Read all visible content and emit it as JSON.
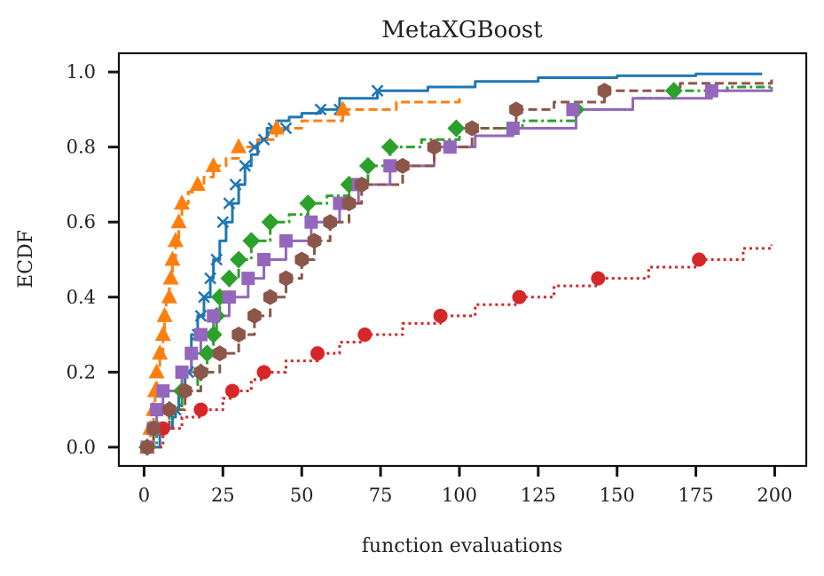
{
  "chart_data": {
    "type": "line",
    "title": "MetaXGBoost",
    "xlabel": "function evaluations",
    "ylabel": "ECDF",
    "xlim": [
      -8,
      210
    ],
    "ylim": [
      -0.05,
      1.05
    ],
    "xticks": [
      0,
      25,
      50,
      75,
      100,
      125,
      150,
      175,
      200
    ],
    "yticks": [
      0.0,
      0.2,
      0.4,
      0.6,
      0.8,
      1.0
    ],
    "xtick_labels": [
      "0",
      "25",
      "50",
      "75",
      "100",
      "125",
      "150",
      "175",
      "200"
    ],
    "ytick_labels": [
      "0.0",
      "0.2",
      "0.4",
      "0.6",
      "0.8",
      "1.0"
    ],
    "grid": false,
    "series": [
      {
        "color": "#1f77b4",
        "dash": "solid",
        "marker": "x",
        "points": [
          [
            1,
            0
          ],
          [
            5,
            0.05
          ],
          [
            9,
            0.08
          ],
          [
            10,
            0.1
          ],
          [
            11,
            0.15
          ],
          [
            13,
            0.2
          ],
          [
            15,
            0.3
          ],
          [
            17,
            0.35
          ],
          [
            19,
            0.4
          ],
          [
            21,
            0.45
          ],
          [
            22,
            0.5
          ],
          [
            24,
            0.55
          ],
          [
            26,
            0.6
          ],
          [
            28,
            0.65
          ],
          [
            30,
            0.7
          ],
          [
            32,
            0.75
          ],
          [
            34,
            0.78
          ],
          [
            36,
            0.82
          ],
          [
            39,
            0.85
          ],
          [
            42,
            0.87
          ],
          [
            46,
            0.88
          ],
          [
            50,
            0.89
          ],
          [
            56,
            0.9
          ],
          [
            62,
            0.93
          ],
          [
            74,
            0.95
          ],
          [
            90,
            0.96
          ],
          [
            105,
            0.975
          ],
          [
            125,
            0.985
          ],
          [
            150,
            0.99
          ],
          [
            175,
            0.995
          ],
          [
            196,
            0.995
          ]
        ],
        "markers": [
          [
            1,
            0
          ],
          [
            5,
            0.05
          ],
          [
            10,
            0.1
          ],
          [
            14,
            0.2
          ],
          [
            17,
            0.3
          ],
          [
            18,
            0.35
          ],
          [
            19,
            0.4
          ],
          [
            21,
            0.45
          ],
          [
            23,
            0.5
          ],
          [
            25,
            0.6
          ],
          [
            27,
            0.65
          ],
          [
            29,
            0.7
          ],
          [
            32,
            0.75
          ],
          [
            35,
            0.8
          ],
          [
            38,
            0.82
          ],
          [
            41,
            0.85
          ],
          [
            45,
            0.85
          ],
          [
            56,
            0.9
          ],
          [
            62,
            0.9
          ],
          [
            74,
            0.95
          ]
        ]
      },
      {
        "color": "#ff7f0e",
        "dash": "dashed",
        "marker": "^",
        "points": [
          [
            1,
            0
          ],
          [
            2,
            0.05
          ],
          [
            3,
            0.1
          ],
          [
            3.5,
            0.15
          ],
          [
            4,
            0.2
          ],
          [
            5,
            0.25
          ],
          [
            6,
            0.3
          ],
          [
            6.5,
            0.35
          ],
          [
            7,
            0.4
          ],
          [
            8,
            0.45
          ],
          [
            9,
            0.5
          ],
          [
            10,
            0.55
          ],
          [
            11,
            0.6
          ],
          [
            12,
            0.65
          ],
          [
            14,
            0.68
          ],
          [
            16,
            0.7
          ],
          [
            19,
            0.72
          ],
          [
            22,
            0.75
          ],
          [
            26,
            0.77
          ],
          [
            30,
            0.8
          ],
          [
            36,
            0.82
          ],
          [
            42,
            0.85
          ],
          [
            50,
            0.87
          ],
          [
            63,
            0.9
          ],
          [
            80,
            0.92
          ],
          [
            100,
            0.93
          ]
        ],
        "markers": [
          [
            1,
            0
          ],
          [
            2,
            0.05
          ],
          [
            3,
            0.1
          ],
          [
            3.5,
            0.15
          ],
          [
            4,
            0.2
          ],
          [
            5,
            0.25
          ],
          [
            6,
            0.3
          ],
          [
            6.5,
            0.35
          ],
          [
            8,
            0.4
          ],
          [
            8.5,
            0.45
          ],
          [
            9,
            0.5
          ],
          [
            10,
            0.55
          ],
          [
            11,
            0.6
          ],
          [
            12,
            0.65
          ],
          [
            17,
            0.7
          ],
          [
            22,
            0.75
          ],
          [
            30,
            0.8
          ],
          [
            42,
            0.85
          ],
          [
            63,
            0.9
          ]
        ]
      },
      {
        "color": "#2ca02c",
        "dash": "dashdot",
        "marker": "D",
        "points": [
          [
            1,
            0
          ],
          [
            4,
            0.05
          ],
          [
            8,
            0.1
          ],
          [
            12,
            0.15
          ],
          [
            17,
            0.2
          ],
          [
            20,
            0.25
          ],
          [
            22,
            0.3
          ],
          [
            23,
            0.35
          ],
          [
            24,
            0.4
          ],
          [
            27,
            0.45
          ],
          [
            30,
            0.5
          ],
          [
            34,
            0.55
          ],
          [
            40,
            0.6
          ],
          [
            46,
            0.62
          ],
          [
            52,
            0.65
          ],
          [
            58,
            0.67
          ],
          [
            65,
            0.7
          ],
          [
            71,
            0.75
          ],
          [
            78,
            0.8
          ],
          [
            88,
            0.82
          ],
          [
            100,
            0.85
          ],
          [
            120,
            0.87
          ],
          [
            137,
            0.9
          ],
          [
            155,
            0.93
          ],
          [
            168,
            0.95
          ],
          [
            185,
            0.96
          ],
          [
            199,
            0.96
          ]
        ],
        "markers": [
          [
            1,
            0
          ],
          [
            4,
            0.05
          ],
          [
            8,
            0.1
          ],
          [
            12,
            0.15
          ],
          [
            18,
            0.2
          ],
          [
            20,
            0.25
          ],
          [
            22,
            0.3
          ],
          [
            23,
            0.35
          ],
          [
            24,
            0.4
          ],
          [
            27,
            0.45
          ],
          [
            30,
            0.5
          ],
          [
            34,
            0.55
          ],
          [
            40,
            0.6
          ],
          [
            52,
            0.65
          ],
          [
            65,
            0.7
          ],
          [
            71,
            0.75
          ],
          [
            78,
            0.8
          ],
          [
            99,
            0.85
          ],
          [
            137,
            0.9
          ],
          [
            168,
            0.95
          ]
        ]
      },
      {
        "color": "#d62728",
        "dash": "dotted",
        "marker": "o",
        "points": [
          [
            1,
            0
          ],
          [
            6,
            0.05
          ],
          [
            12,
            0.08
          ],
          [
            18,
            0.1
          ],
          [
            25,
            0.13
          ],
          [
            28,
            0.15
          ],
          [
            34,
            0.18
          ],
          [
            38,
            0.2
          ],
          [
            45,
            0.23
          ],
          [
            55,
            0.25
          ],
          [
            62,
            0.28
          ],
          [
            70,
            0.3
          ],
          [
            82,
            0.33
          ],
          [
            94,
            0.35
          ],
          [
            105,
            0.38
          ],
          [
            119,
            0.4
          ],
          [
            130,
            0.43
          ],
          [
            144,
            0.45
          ],
          [
            160,
            0.48
          ],
          [
            176,
            0.5
          ],
          [
            190,
            0.53
          ],
          [
            199,
            0.54
          ]
        ],
        "markers": [
          [
            1,
            0
          ],
          [
            6,
            0.05
          ],
          [
            18,
            0.1
          ],
          [
            28,
            0.15
          ],
          [
            38,
            0.2
          ],
          [
            55,
            0.25
          ],
          [
            70,
            0.3
          ],
          [
            94,
            0.35
          ],
          [
            119,
            0.4
          ],
          [
            144,
            0.45
          ],
          [
            176,
            0.5
          ]
        ]
      },
      {
        "color": "#9467bd",
        "dash": "solid",
        "marker": "s",
        "points": [
          [
            1,
            0
          ],
          [
            3,
            0.05
          ],
          [
            4,
            0.1
          ],
          [
            6,
            0.15
          ],
          [
            12,
            0.2
          ],
          [
            15,
            0.25
          ],
          [
            18,
            0.3
          ],
          [
            22,
            0.35
          ],
          [
            27,
            0.4
          ],
          [
            33,
            0.45
          ],
          [
            38,
            0.5
          ],
          [
            45,
            0.55
          ],
          [
            53,
            0.6
          ],
          [
            62,
            0.65
          ],
          [
            68,
            0.7
          ],
          [
            78,
            0.75
          ],
          [
            92,
            0.8
          ],
          [
            105,
            0.83
          ],
          [
            117,
            0.85
          ],
          [
            137,
            0.9
          ],
          [
            155,
            0.93
          ],
          [
            180,
            0.95
          ],
          [
            199,
            0.96
          ]
        ],
        "markers": [
          [
            1,
            0
          ],
          [
            3,
            0.05
          ],
          [
            4,
            0.1
          ],
          [
            6,
            0.15
          ],
          [
            12,
            0.2
          ],
          [
            15,
            0.25
          ],
          [
            18,
            0.3
          ],
          [
            22,
            0.35
          ],
          [
            27,
            0.4
          ],
          [
            33,
            0.45
          ],
          [
            38,
            0.5
          ],
          [
            45,
            0.55
          ],
          [
            53,
            0.6
          ],
          [
            62,
            0.65
          ],
          [
            68,
            0.7
          ],
          [
            78,
            0.75
          ],
          [
            97,
            0.8
          ],
          [
            117,
            0.85
          ],
          [
            136,
            0.9
          ],
          [
            180,
            0.95
          ]
        ]
      },
      {
        "color": "#8c564b",
        "dash": "dashed",
        "marker": "h",
        "points": [
          [
            1,
            0
          ],
          [
            3,
            0.05
          ],
          [
            8,
            0.1
          ],
          [
            13,
            0.15
          ],
          [
            18,
            0.2
          ],
          [
            24,
            0.25
          ],
          [
            30,
            0.3
          ],
          [
            35,
            0.35
          ],
          [
            40,
            0.4
          ],
          [
            45,
            0.45
          ],
          [
            50,
            0.5
          ],
          [
            54,
            0.55
          ],
          [
            59,
            0.6
          ],
          [
            65,
            0.65
          ],
          [
            69,
            0.7
          ],
          [
            82,
            0.75
          ],
          [
            92,
            0.8
          ],
          [
            104,
            0.85
          ],
          [
            118,
            0.9
          ],
          [
            130,
            0.92
          ],
          [
            146,
            0.95
          ],
          [
            170,
            0.97
          ],
          [
            199,
            0.98
          ]
        ],
        "markers": [
          [
            1,
            0
          ],
          [
            3,
            0.05
          ],
          [
            8,
            0.1
          ],
          [
            13,
            0.15
          ],
          [
            18,
            0.2
          ],
          [
            24,
            0.25
          ],
          [
            30,
            0.3
          ],
          [
            35,
            0.35
          ],
          [
            40,
            0.4
          ],
          [
            45,
            0.45
          ],
          [
            50,
            0.5
          ],
          [
            54,
            0.55
          ],
          [
            59,
            0.6
          ],
          [
            65,
            0.65
          ],
          [
            69,
            0.7
          ],
          [
            82,
            0.75
          ],
          [
            92,
            0.8
          ],
          [
            104,
            0.85
          ],
          [
            118,
            0.9
          ],
          [
            146,
            0.95
          ]
        ]
      }
    ]
  }
}
